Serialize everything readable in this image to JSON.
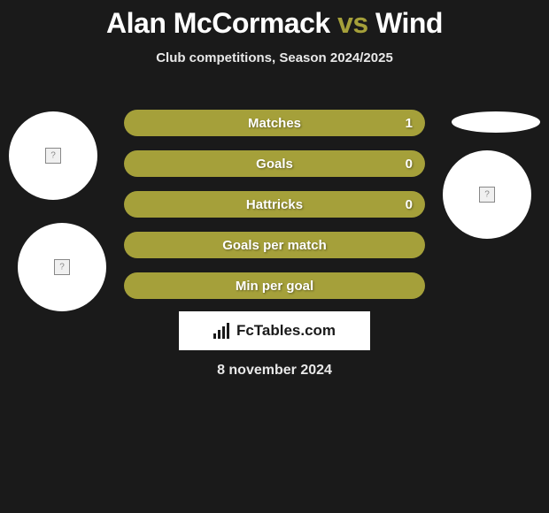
{
  "title": {
    "player1": "Alan McCormack",
    "vs": "vs",
    "player2": "Wind",
    "highlight_color": "#a5a03a"
  },
  "subtitle": "Club competitions, Season 2024/2025",
  "stats": [
    {
      "label": "Matches",
      "value_right": "1",
      "bg": "#a5a03a"
    },
    {
      "label": "Goals",
      "value_right": "0",
      "bg": "#a5a03a"
    },
    {
      "label": "Hattricks",
      "value_right": "0",
      "bg": "#a5a03a"
    },
    {
      "label": "Goals per match",
      "value_right": "",
      "bg": "#a5a03a"
    },
    {
      "label": "Min per goal",
      "value_right": "",
      "bg": "#a5a03a"
    }
  ],
  "logo": {
    "text": "FcTables.com"
  },
  "date": "8 november 2024",
  "colors": {
    "background": "#1a1a1a",
    "bar": "#a5a03a",
    "text": "#ffffff",
    "circle": "#ffffff"
  }
}
